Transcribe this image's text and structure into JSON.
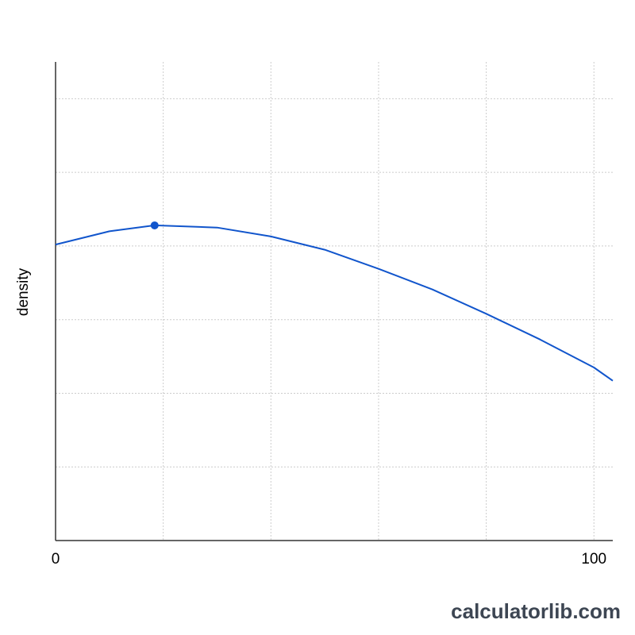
{
  "chart_data": {
    "type": "line",
    "ylabel": "density",
    "x": [
      0,
      10,
      18.4,
      30,
      40,
      50,
      60,
      70,
      80,
      90,
      100,
      103.5
    ],
    "series": [
      {
        "color": "#1155cc",
        "values": [
          4.02,
          4.2,
          4.28,
          4.25,
          4.13,
          3.95,
          3.69,
          3.41,
          3.08,
          2.73,
          2.35,
          2.17
        ]
      }
    ],
    "highlight": {
      "x": 18.4,
      "y": 4.28,
      "color": "#1155cc"
    },
    "xlim": [
      0,
      103.5
    ],
    "xticks": [
      0,
      100
    ],
    "xgrid": [
      20,
      40,
      60,
      80,
      100
    ],
    "ylim": [
      0,
      6.5
    ],
    "ygrid": [
      1,
      2,
      3,
      4,
      5,
      6
    ],
    "grid": true
  },
  "watermark": "calculatorlib.com"
}
